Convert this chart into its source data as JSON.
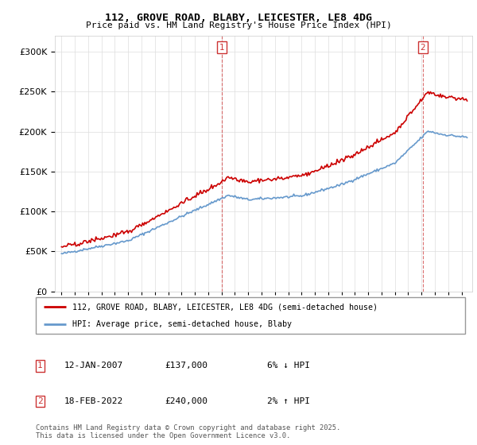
{
  "title": "112, GROVE ROAD, BLABY, LEICESTER, LE8 4DG",
  "subtitle": "Price paid vs. HM Land Registry's House Price Index (HPI)",
  "legend_label_red": "112, GROVE ROAD, BLABY, LEICESTER, LE8 4DG (semi-detached house)",
  "legend_label_blue": "HPI: Average price, semi-detached house, Blaby",
  "annotation1_date": "12-JAN-2007",
  "annotation1_price": "£137,000",
  "annotation1_hpi": "6% ↓ HPI",
  "annotation2_date": "18-FEB-2022",
  "annotation2_price": "£240,000",
  "annotation2_hpi": "2% ↑ HPI",
  "footer": "Contains HM Land Registry data © Crown copyright and database right 2025.\nThis data is licensed under the Open Government Licence v3.0.",
  "red_color": "#cc0000",
  "blue_color": "#6699cc",
  "background_color": "#ffffff",
  "grid_color": "#dddddd",
  "ylim": [
    0,
    320000
  ],
  "yticks": [
    0,
    50000,
    100000,
    150000,
    200000,
    250000,
    300000
  ],
  "start_year": 1995,
  "end_year": 2025
}
